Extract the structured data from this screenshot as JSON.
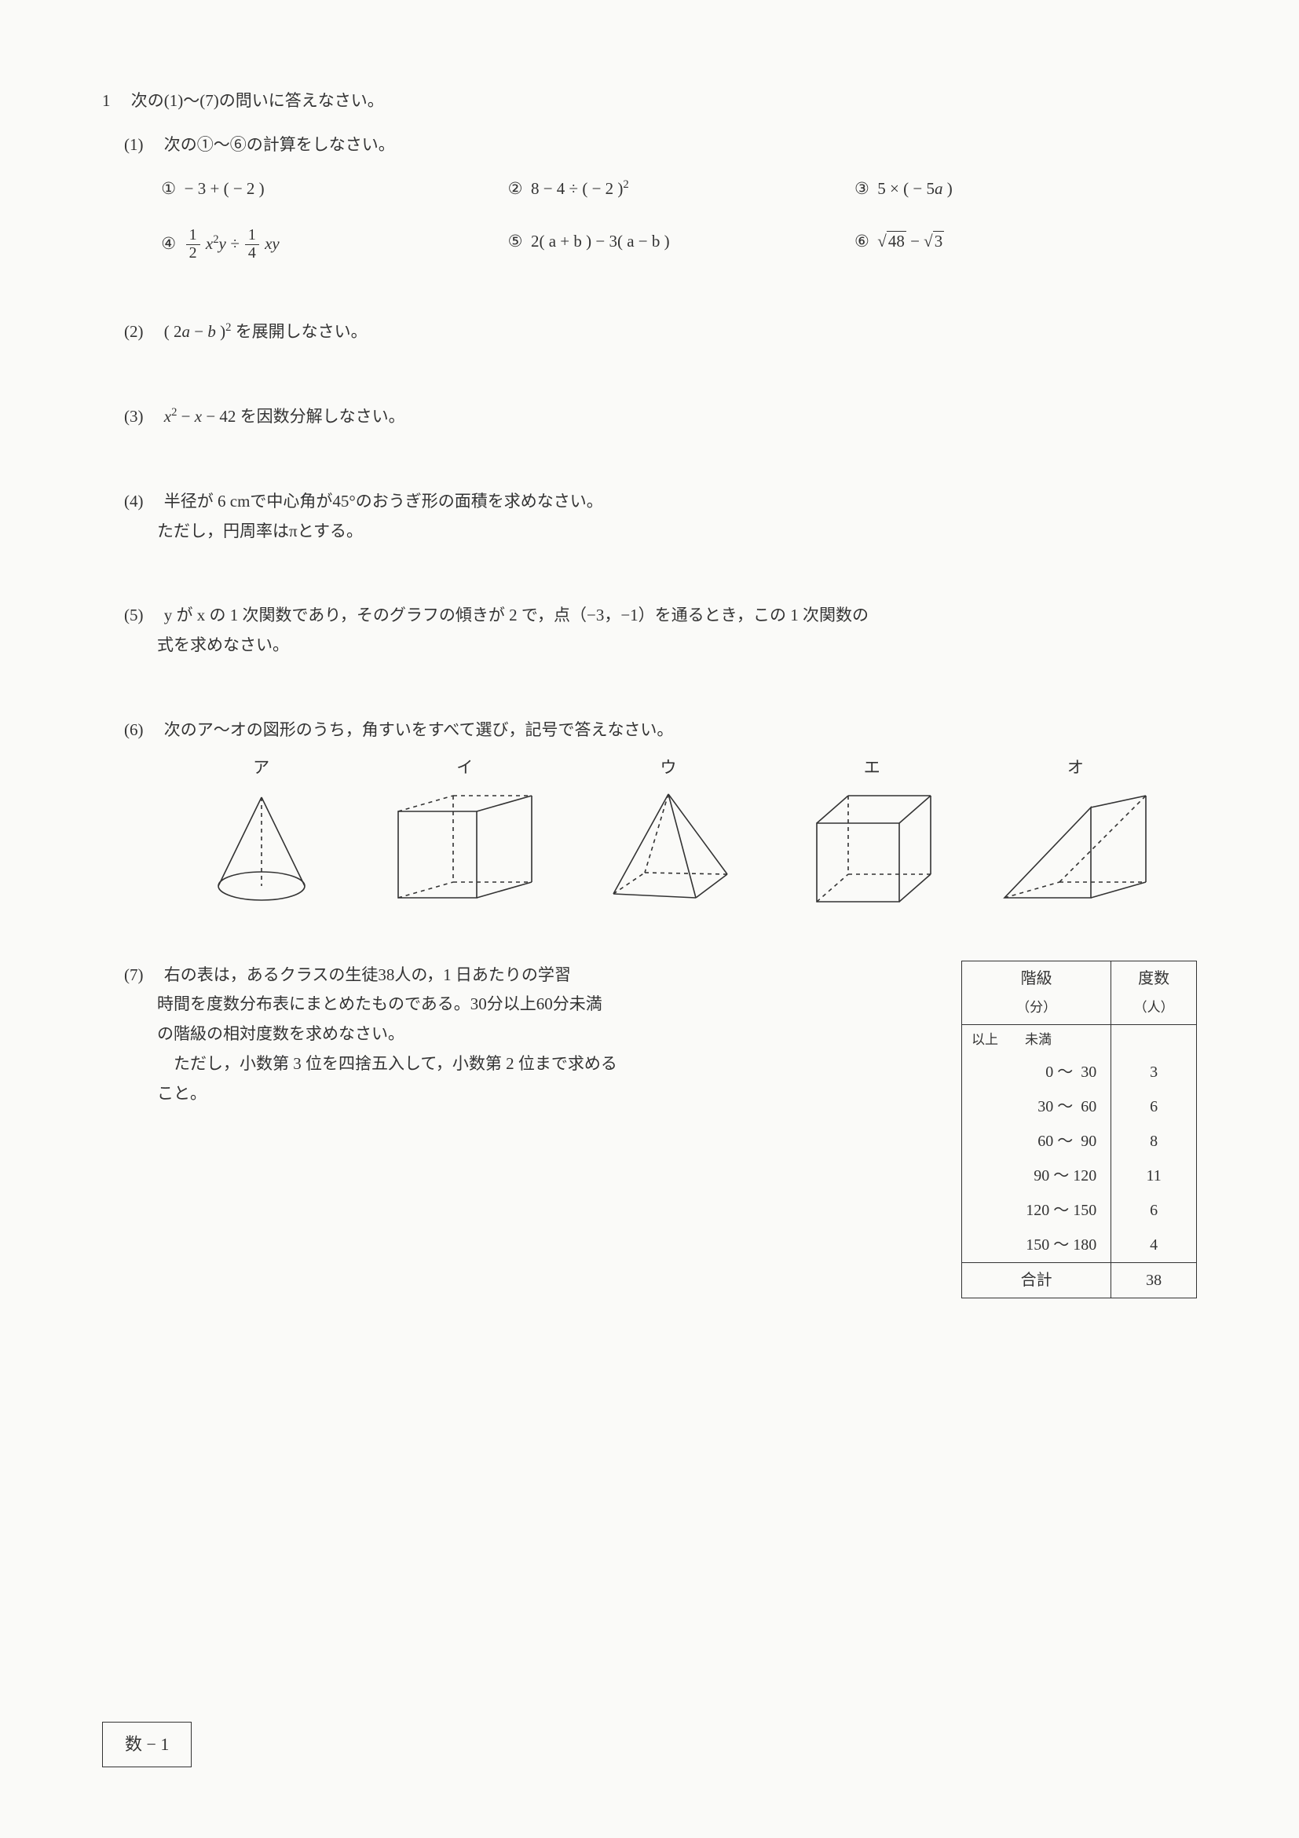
{
  "main_q": {
    "num": "1",
    "text": "次の(1)〜(7)の問いに答えなさい。"
  },
  "q1": {
    "label": "(1)",
    "text": "次の①〜⑥の計算をしなさい。",
    "items": {
      "c1": "①",
      "e1_a": "− 3 + ( − 2 )",
      "c2": "②",
      "e2_a": "8 − 4 ÷ ( − 2 )",
      "e2_sup": "2",
      "c3": "③",
      "e3_a": "5 × ( − 5",
      "e3_var": "a",
      "e3_b": " )",
      "c4": "④",
      "e4_f1n": "1",
      "e4_f1d": "2",
      "e4_mid": " x",
      "e4_sup": "2",
      "e4_mid2": "y ÷ ",
      "e4_f2n": "1",
      "e4_f2d": "4",
      "e4_tail": " xy",
      "c5": "⑤",
      "e5": "2( a + b ) − 3( a − b )",
      "c6": "⑥",
      "e6_r1": "48",
      "e6_mid": " − ",
      "e6_r2": "3"
    }
  },
  "q2": {
    "label": "(2)",
    "expr_a": "( 2",
    "expr_var1": "a",
    "expr_b": " − ",
    "expr_var2": "b",
    "expr_c": " )",
    "expr_sup": "2",
    "text": " を展開しなさい。"
  },
  "q3": {
    "label": "(3)",
    "expr_var": "x",
    "expr_sup": "2",
    "expr_b": " − ",
    "expr_var2": "x",
    "expr_c": " − 42",
    "text": " を因数分解しなさい。"
  },
  "q4": {
    "label": "(4)",
    "line1": "半径が 6 cmで中心角が45°のおうぎ形の面積を求めなさい。",
    "line2": "ただし，円周率はπとする。"
  },
  "q5": {
    "label": "(5)",
    "line1_a": "",
    "var_y": "y",
    "line1_b": " が ",
    "var_x": "x",
    "line1_c": " の 1 次関数であり，そのグラフの傾きが 2 で，点（−3，−1）を通るとき，この 1 次関数の",
    "line2": "式を求めなさい。"
  },
  "q6": {
    "label": "(6)",
    "text": "次のア〜オの図形のうち，角すいをすべて選び，記号で答えなさい。",
    "labels": {
      "a": "ア",
      "b": "イ",
      "c": "ウ",
      "d": "エ",
      "e": "オ"
    }
  },
  "q7": {
    "label": "(7)",
    "line1": "右の表は，あるクラスの生徒38人の，1 日あたりの学習",
    "line2": "時間を度数分布表にまとめたものである。30分以上60分未満",
    "line3": "の階級の相対度数を求めなさい。",
    "line4": "ただし，小数第 3 位を四捨五入して，小数第 2 位まで求める",
    "line5": "こと。",
    "table": {
      "h1": "階級",
      "h1_unit": "（分）",
      "h2": "度数",
      "h2_unit": "（人）",
      "ijou": "以上",
      "miman": "未満",
      "rows": [
        {
          "from": "0",
          "to": "30",
          "count": "3"
        },
        {
          "from": "30",
          "to": "60",
          "count": "6"
        },
        {
          "from": "60",
          "to": "90",
          "count": "8"
        },
        {
          "from": "90",
          "to": "120",
          "count": "11"
        },
        {
          "from": "120",
          "to": "150",
          "count": "6"
        },
        {
          "from": "150",
          "to": "180",
          "count": "4"
        }
      ],
      "total_label": "合計",
      "total": "38"
    }
  },
  "footer": "数 − 1"
}
